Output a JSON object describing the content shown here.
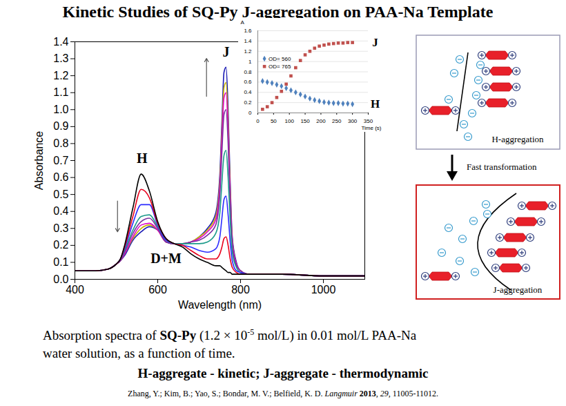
{
  "title": "Kinetic Studies of SQ-Py J-aggregation on PAA-Na Template",
  "chart_data": [
    {
      "type": "line",
      "xlabel": "Wavelength (nm)",
      "ylabel": "Absorbance",
      "x": [
        400,
        450,
        480,
        500,
        510,
        520,
        540,
        560,
        580,
        600,
        620,
        640,
        660,
        680,
        700,
        720,
        740,
        750,
        755,
        760,
        765,
        770,
        775,
        780,
        790,
        800,
        820,
        850,
        900,
        1000,
        1100
      ],
      "series": [
        {
          "color": "#1a1ab4",
          "values": [
            0.05,
            0.05,
            0.06,
            0.09,
            0.11,
            0.14,
            0.23,
            0.28,
            0.31,
            0.29,
            0.22,
            0.21,
            0.21,
            0.22,
            0.25,
            0.3,
            0.39,
            0.62,
            0.93,
            1.22,
            1.25,
            1.0,
            0.57,
            0.25,
            0.1,
            0.05,
            0.03,
            0.03,
            0.03,
            0.02,
            0.02
          ]
        },
        {
          "color": "#c8b400",
          "values": [
            0.05,
            0.05,
            0.06,
            0.09,
            0.11,
            0.15,
            0.24,
            0.3,
            0.32,
            0.29,
            0.22,
            0.21,
            0.21,
            0.22,
            0.25,
            0.29,
            0.37,
            0.58,
            0.87,
            1.13,
            1.16,
            0.93,
            0.53,
            0.23,
            0.09,
            0.05,
            0.03,
            0.03,
            0.03,
            0.02,
            0.02
          ]
        },
        {
          "color": "#e000c8",
          "values": [
            0.05,
            0.05,
            0.06,
            0.09,
            0.11,
            0.15,
            0.25,
            0.32,
            0.33,
            0.29,
            0.22,
            0.21,
            0.21,
            0.22,
            0.24,
            0.28,
            0.35,
            0.55,
            0.83,
            1.07,
            1.1,
            0.88,
            0.5,
            0.22,
            0.09,
            0.05,
            0.03,
            0.03,
            0.03,
            0.02,
            0.02
          ]
        },
        {
          "color": "#7b2fa0",
          "values": [
            0.05,
            0.05,
            0.06,
            0.09,
            0.11,
            0.16,
            0.27,
            0.34,
            0.36,
            0.3,
            0.22,
            0.21,
            0.21,
            0.22,
            0.23,
            0.26,
            0.32,
            0.5,
            0.75,
            0.97,
            1.0,
            0.8,
            0.45,
            0.2,
            0.08,
            0.05,
            0.03,
            0.03,
            0.03,
            0.02,
            0.02
          ]
        },
        {
          "color": "#1a9a8a",
          "values": [
            0.05,
            0.05,
            0.06,
            0.09,
            0.12,
            0.17,
            0.29,
            0.37,
            0.38,
            0.31,
            0.23,
            0.21,
            0.21,
            0.21,
            0.21,
            0.22,
            0.27,
            0.39,
            0.57,
            0.73,
            0.76,
            0.6,
            0.35,
            0.16,
            0.07,
            0.04,
            0.03,
            0.03,
            0.03,
            0.02,
            0.02
          ]
        },
        {
          "color": "#2b2bff",
          "values": [
            0.05,
            0.05,
            0.06,
            0.09,
            0.12,
            0.18,
            0.33,
            0.44,
            0.44,
            0.32,
            0.23,
            0.21,
            0.2,
            0.19,
            0.17,
            0.16,
            0.18,
            0.25,
            0.36,
            0.47,
            0.49,
            0.38,
            0.22,
            0.11,
            0.05,
            0.04,
            0.03,
            0.03,
            0.03,
            0.02,
            0.02
          ]
        },
        {
          "color": "#e8001c",
          "values": [
            0.05,
            0.05,
            0.06,
            0.09,
            0.12,
            0.19,
            0.37,
            0.53,
            0.48,
            0.33,
            0.24,
            0.21,
            0.2,
            0.17,
            0.14,
            0.12,
            0.12,
            0.15,
            0.19,
            0.24,
            0.25,
            0.2,
            0.12,
            0.07,
            0.04,
            0.03,
            0.03,
            0.03,
            0.03,
            0.02,
            0.02
          ]
        },
        {
          "color": "#000000",
          "values": [
            0.05,
            0.05,
            0.06,
            0.09,
            0.12,
            0.2,
            0.42,
            0.62,
            0.52,
            0.34,
            0.24,
            0.21,
            0.19,
            0.15,
            0.12,
            0.1,
            0.08,
            0.08,
            0.07,
            0.06,
            0.05,
            0.04,
            0.04,
            0.03,
            0.03,
            0.03,
            0.03,
            0.03,
            0.03,
            0.02,
            0.02
          ]
        }
      ],
      "xlim": [
        400,
        1100
      ],
      "ylim": [
        0,
        1.4
      ],
      "xticks": [
        400,
        600,
        800,
        1000
      ],
      "yticks": [
        {
          "value": 0,
          "label": "0.0"
        },
        0.1,
        0.2,
        0.3,
        0.4,
        0.5,
        0.6,
        0.7,
        0.8,
        0.9,
        {
          "value": 1,
          "label": "1.0"
        },
        1.1,
        1.2,
        1.3,
        1.4
      ],
      "annotations": [
        {
          "text": "H",
          "x": 562,
          "y": 0.71
        },
        {
          "text": "J",
          "x": 765,
          "y": 1.34
        },
        {
          "text": "D+M",
          "x": 620,
          "y": 0.12
        }
      ]
    },
    {
      "type": "scatter",
      "xlabel": "Time (s)",
      "ylabel": "A",
      "x": [
        15,
        30,
        45,
        60,
        75,
        90,
        105,
        120,
        135,
        150,
        165,
        180,
        195,
        210,
        225,
        240,
        255,
        270,
        285,
        300
      ],
      "series": [
        {
          "name": "OD= 560",
          "color": "#4f81bd",
          "marker": "diamond",
          "values": [
            0.62,
            0.6,
            0.58,
            0.55,
            0.52,
            0.48,
            0.44,
            0.4,
            0.36,
            0.32,
            0.28,
            0.25,
            0.23,
            0.21,
            0.2,
            0.19,
            0.19,
            0.18,
            0.18,
            0.17
          ]
        },
        {
          "name": "OD= 765",
          "color": "#c0504d",
          "marker": "square",
          "values": [
            0.07,
            0.12,
            0.2,
            0.3,
            0.42,
            0.56,
            0.72,
            0.88,
            1.02,
            1.13,
            1.2,
            1.26,
            1.3,
            1.32,
            1.34,
            1.35,
            1.36,
            1.36,
            1.37,
            1.37
          ]
        }
      ],
      "xlim": [
        0,
        350
      ],
      "ylim": [
        0,
        1.6
      ],
      "xticks": [
        0,
        50,
        100,
        150,
        200,
        250,
        300,
        350
      ],
      "yticks": [
        0,
        0.2,
        0.4,
        0.6,
        0.8,
        1,
        1.2,
        1.4,
        1.6
      ],
      "grid": "y",
      "legend": "center left",
      "annotations": [
        {
          "text": "J",
          "x": 350,
          "y": 1.37
        },
        {
          "text": "H",
          "x": 350,
          "y": 0.17
        }
      ]
    }
  ],
  "diagram": {
    "panels": [
      {
        "label": "H-aggregation"
      },
      {
        "label": "J-aggregation"
      }
    ],
    "transition": "Fast transformation"
  },
  "caption": [
    [
      {
        "text": "Absorption spectra of "
      },
      {
        "text": "SQ-Py",
        "style": "bold"
      },
      {
        "text": " (1.2 × 10"
      },
      {
        "text": "-5",
        "style": "sup"
      },
      {
        "text": " mol/L) in 0.01 mol/L PAA-Na"
      }
    ],
    [
      {
        "text": "water solution, as a function of time."
      }
    ]
  ],
  "tagline": "H-aggregate - kinetic; J-aggregate - thermodynamic",
  "citation": [
    {
      "text": "Zhang, Y.; Kim, B.; Yao, S.; Bondar, M. V.; Belfield, K. D. "
    },
    {
      "text": "Langmuir",
      "style": "italic"
    },
    {
      "text": " "
    },
    {
      "text": "2013",
      "style": "bold"
    },
    {
      "text": ", "
    },
    {
      "text": "29",
      "style": "italic"
    },
    {
      "text": ", 11005-11012."
    }
  ]
}
